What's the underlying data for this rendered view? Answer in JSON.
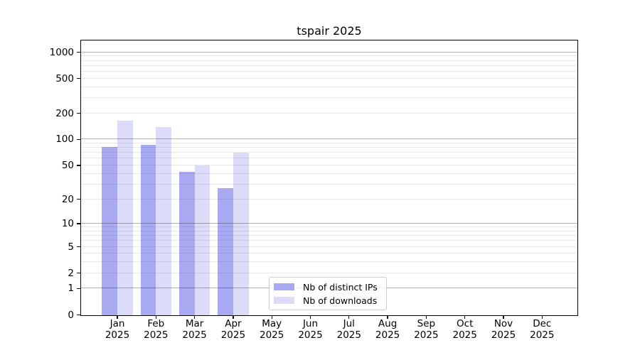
{
  "chart_data": {
    "type": "bar",
    "title": "tspair 2025",
    "categories": [
      "Jan 2025",
      "Feb 2025",
      "Mar 2025",
      "Apr 2025",
      "May 2025",
      "Jun 2025",
      "Jul 2025",
      "Aug 2025",
      "Sep 2025",
      "Oct 2025",
      "Nov 2025",
      "Dec 2025"
    ],
    "series": [
      {
        "name": "Nb of distinct IPs",
        "color": "#a9a9f2",
        "values": [
          82,
          86,
          42,
          27,
          null,
          null,
          null,
          null,
          null,
          null,
          null,
          null
        ]
      },
      {
        "name": "Nb of downloads",
        "color": "#dcdcf9",
        "values": [
          165,
          140,
          50,
          70,
          null,
          null,
          null,
          null,
          null,
          null,
          null,
          null
        ]
      }
    ],
    "y_axis": {
      "scale": "log10(value+1)",
      "tick_labels": [
        1000,
        500,
        200,
        100,
        50,
        20,
        10,
        5,
        2,
        1,
        0
      ],
      "major_gridlines": [
        1000,
        100,
        10,
        1
      ],
      "minor_gridlines": [
        900,
        800,
        700,
        600,
        500,
        400,
        300,
        200,
        90,
        80,
        70,
        60,
        50,
        40,
        30,
        20,
        9,
        8,
        7,
        6,
        5,
        4,
        3,
        2
      ],
      "ylim": [
        0,
        1355
      ]
    },
    "grid": true,
    "legend_position": "inside plot, lower center"
  },
  "colors": {
    "background": "#ffffff",
    "bar_distinct_ips": "#a9a9f2",
    "bar_downloads": "#dcdcf9",
    "minor_gridline": "rgba(0,0,0,0.085)",
    "major_gridline": "rgba(0,0,0,0.3)",
    "spine": "#000000",
    "text": "#000000",
    "legend_border": "#cccccc",
    "legend_background": "rgba(255,255,255,0.8)"
  }
}
